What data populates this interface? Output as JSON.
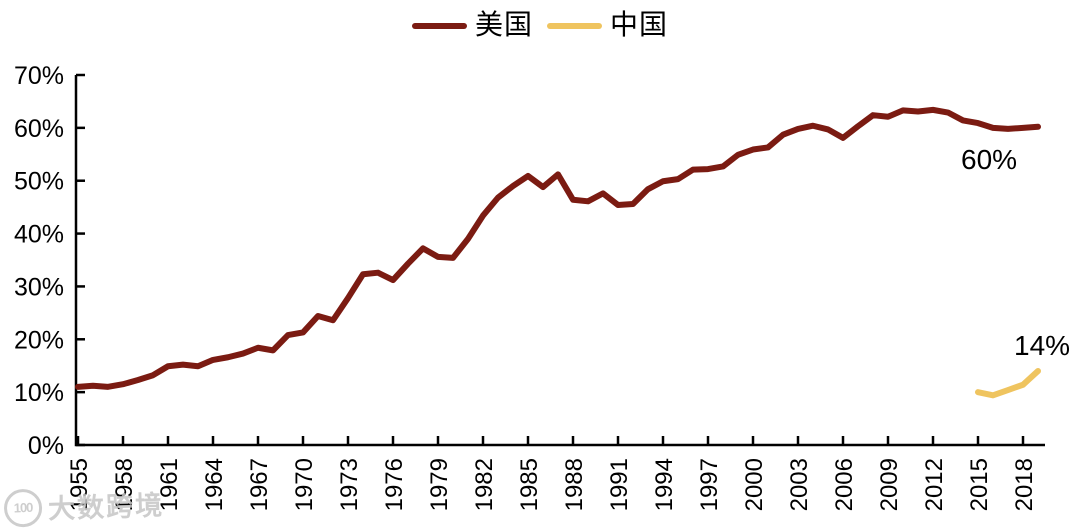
{
  "legend": {
    "items": [
      {
        "label": "美国",
        "color": "#7B1B12"
      },
      {
        "label": "中国",
        "color": "#EFC45F"
      }
    ]
  },
  "watermark": {
    "logo_text": "100",
    "text": "大数跨境"
  },
  "chart_data": {
    "type": "line",
    "title": "",
    "xlabel": "",
    "ylabel": "",
    "grid": false,
    "legend_position": "top-center",
    "ylim": [
      0,
      70
    ],
    "y_ticks": [
      0,
      10,
      20,
      30,
      40,
      50,
      60,
      70
    ],
    "y_tick_suffix": "%",
    "x_range": [
      1955,
      2019.5
    ],
    "x_tick_years": [
      1955,
      1958,
      1961,
      1964,
      1967,
      1970,
      1973,
      1976,
      1979,
      1982,
      1985,
      1988,
      1991,
      1994,
      1997,
      2000,
      2003,
      2006,
      2009,
      2012,
      2015,
      2018
    ],
    "series": [
      {
        "name": "美国",
        "color": "#7B1B12",
        "start_year": 1955,
        "end_label": "60%",
        "values": [
          11,
          11.2,
          11,
          11.5,
          12.3,
          13.2,
          14.9,
          15.2,
          14.9,
          16.1,
          16.6,
          17.3,
          18.4,
          17.9,
          20.8,
          21.3,
          24.4,
          23.6,
          27.8,
          32.3,
          32.6,
          31.2,
          34.3,
          37.2,
          35.6,
          35.4,
          39,
          43.4,
          46.8,
          49,
          50.9,
          48.8,
          51.2,
          46.4,
          46.1,
          47.6,
          45.4,
          45.6,
          48.4,
          49.9,
          50.3,
          52.1,
          52.2,
          52.7,
          54.9,
          55.9,
          56.3,
          58.7,
          59.8,
          60.4,
          59.7,
          58.1,
          60.3,
          62.4,
          62.1,
          63.3,
          63.1,
          63.4,
          62.9,
          61.4,
          60.9,
          60,
          59.8,
          60,
          60.2
        ]
      },
      {
        "name": "中国",
        "color": "#EFC45F",
        "start_year": 2015,
        "end_label": "14%",
        "values": [
          10,
          9.4,
          10.4,
          11.4,
          14
        ]
      }
    ]
  }
}
